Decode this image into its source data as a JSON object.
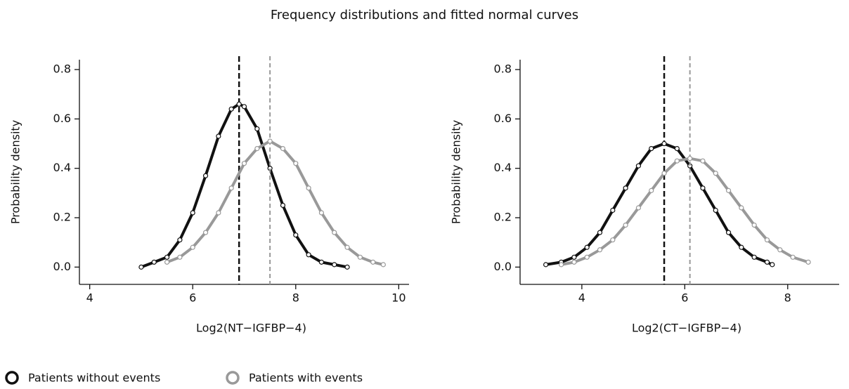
{
  "title": "Frequency distributions and fitted normal curves",
  "legend": "bottom-left",
  "chart_data": [
    {
      "type": "line",
      "xlabel": "Log2(NT−IGFBP−4)",
      "ylabel": "Probability density",
      "xlim": [
        3.8,
        10.2
      ],
      "ylim": [
        -0.07,
        0.84
      ],
      "xticks": [
        4,
        6,
        8,
        10
      ],
      "yticks": [
        {
          "value": 0,
          "label": "0.0"
        },
        0.2,
        0.4,
        0.6,
        0.8
      ],
      "series": [
        {
          "name": "Patients without events",
          "color": "#111111",
          "mean": 6.9,
          "x": [
            5.0,
            5.25,
            5.5,
            5.75,
            6.0,
            6.25,
            6.5,
            6.75,
            6.9,
            7.0,
            7.25,
            7.5,
            7.75,
            8.0,
            8.25,
            8.5,
            8.75,
            9.0
          ],
          "values": [
            0.0,
            0.02,
            0.04,
            0.11,
            0.22,
            0.37,
            0.53,
            0.64,
            0.66,
            0.65,
            0.56,
            0.4,
            0.25,
            0.13,
            0.05,
            0.02,
            0.01,
            0.0
          ]
        },
        {
          "name": "Patients with events",
          "color": "#999999",
          "mean": 7.5,
          "x": [
            5.5,
            5.75,
            6.0,
            6.25,
            6.5,
            6.75,
            7.0,
            7.25,
            7.5,
            7.75,
            8.0,
            8.25,
            8.5,
            8.75,
            9.0,
            9.25,
            9.5,
            9.7
          ],
          "values": [
            0.02,
            0.04,
            0.08,
            0.14,
            0.22,
            0.32,
            0.42,
            0.48,
            0.51,
            0.48,
            0.42,
            0.32,
            0.22,
            0.14,
            0.08,
            0.04,
            0.02,
            0.01
          ]
        }
      ]
    },
    {
      "type": "line",
      "xlabel": "Log2(CT−IGFBP−4)",
      "ylabel": "Probability density",
      "xlim": [
        2.8,
        9.0
      ],
      "ylim": [
        -0.07,
        0.84
      ],
      "xticks": [
        4,
        6,
        8
      ],
      "yticks": [
        {
          "value": 0,
          "label": "0.0"
        },
        0.2,
        0.4,
        0.6,
        0.8
      ],
      "series": [
        {
          "name": "Patients without events",
          "color": "#111111",
          "mean": 5.6,
          "x": [
            3.3,
            3.6,
            3.85,
            4.1,
            4.35,
            4.6,
            4.85,
            5.1,
            5.35,
            5.6,
            5.85,
            6.1,
            6.35,
            6.6,
            6.85,
            7.1,
            7.35,
            7.6,
            7.7
          ],
          "values": [
            0.01,
            0.02,
            0.04,
            0.08,
            0.14,
            0.23,
            0.32,
            0.41,
            0.48,
            0.5,
            0.48,
            0.41,
            0.32,
            0.23,
            0.14,
            0.08,
            0.04,
            0.02,
            0.01
          ]
        },
        {
          "name": "Patients with events",
          "color": "#999999",
          "mean": 6.1,
          "x": [
            3.6,
            3.85,
            4.1,
            4.35,
            4.6,
            4.85,
            5.1,
            5.35,
            5.6,
            5.85,
            6.1,
            6.35,
            6.6,
            6.85,
            7.1,
            7.35,
            7.6,
            7.85,
            8.1,
            8.4
          ],
          "values": [
            0.01,
            0.02,
            0.04,
            0.07,
            0.11,
            0.17,
            0.24,
            0.31,
            0.38,
            0.43,
            0.44,
            0.43,
            0.38,
            0.31,
            0.24,
            0.17,
            0.11,
            0.07,
            0.04,
            0.02
          ]
        }
      ]
    }
  ]
}
